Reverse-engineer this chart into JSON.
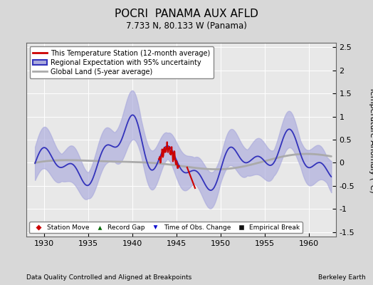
{
  "title": "POCRI  PANAMA AUX AFLD",
  "subtitle": "7.733 N, 80.133 W (Panama)",
  "ylabel": "Temperature Anomaly (°C)",
  "footer_left": "Data Quality Controlled and Aligned at Breakpoints",
  "footer_right": "Berkeley Earth",
  "xlim": [
    1928.0,
    1963.0
  ],
  "ylim": [
    -1.6,
    2.6
  ],
  "yticks": [
    -1.5,
    -1.0,
    -0.5,
    0.0,
    0.5,
    1.0,
    1.5,
    2.0,
    2.5
  ],
  "xticks": [
    1930,
    1935,
    1940,
    1945,
    1950,
    1955,
    1960
  ],
  "bg_color": "#d8d8d8",
  "plot_bg_color": "#e8e8e8",
  "regional_color": "#3333bb",
  "regional_fill_color": "#aaaadd",
  "global_color": "#aaaaaa",
  "station_color": "#cc0000",
  "legend_labels": [
    "This Temperature Station (12-month average)",
    "Regional Expectation with 95% uncertainty",
    "Global Land (5-year average)"
  ],
  "marker_labels": [
    "Station Move",
    "Record Gap",
    "Time of Obs. Change",
    "Empirical Break"
  ],
  "marker_colors": [
    "#cc0000",
    "#006600",
    "#0000cc",
    "#111111"
  ],
  "marker_symbols": [
    "D",
    "^",
    "v",
    "s"
  ]
}
